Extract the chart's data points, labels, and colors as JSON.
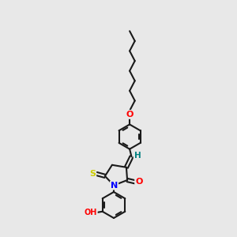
{
  "background_color": "#e8e8e8",
  "line_color": "#1a1a1a",
  "lw": 1.5,
  "S_color": "#cccc00",
  "N_color": "#0000ff",
  "O_color": "#ff0000",
  "H_color": "#008080",
  "figsize": [
    3.0,
    3.0
  ],
  "dpi": 100,
  "xlim": [
    0,
    6
  ],
  "ylim": [
    0,
    10
  ]
}
